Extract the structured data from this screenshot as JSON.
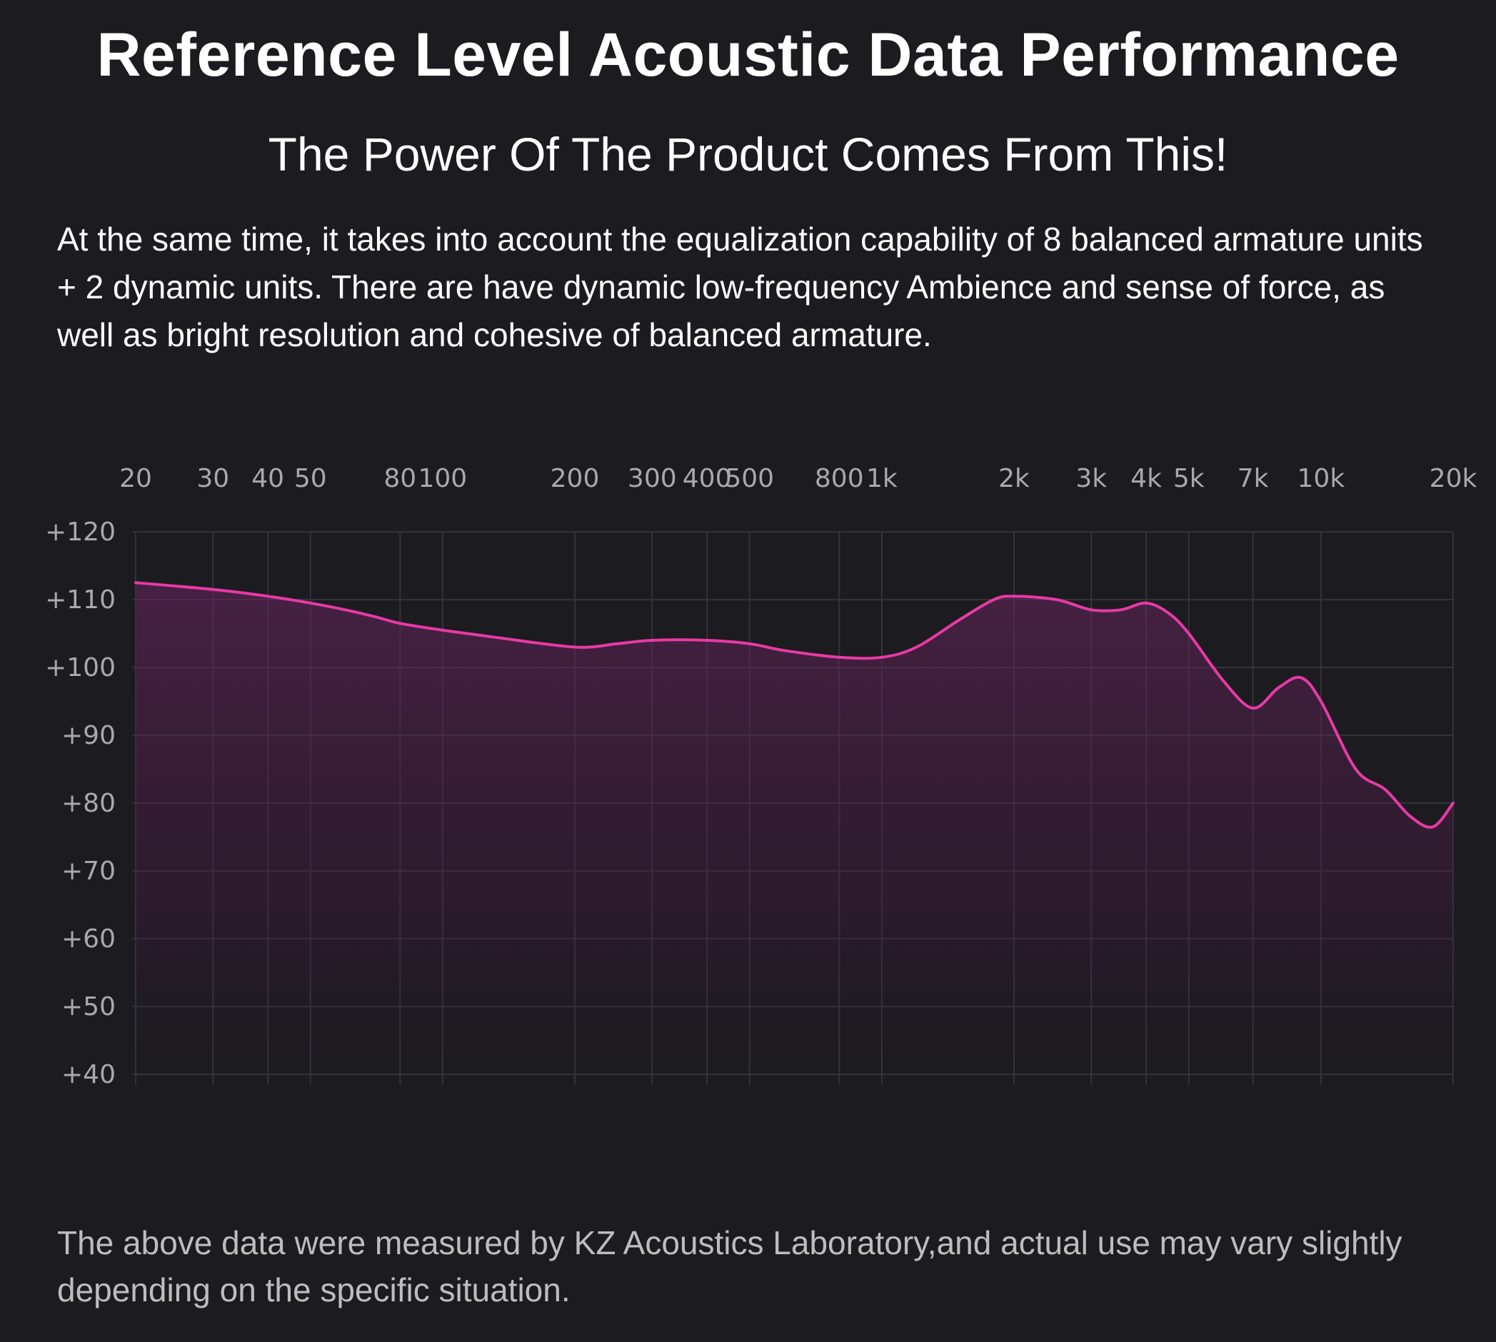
{
  "header": {
    "title": "Reference Level Acoustic Data Performance",
    "subtitle": "The Power Of The Product Comes From This!"
  },
  "intro": {
    "text": "At the same time, it takes into account the equalization capability of 8 balanced armature units + 2 dynamic units. There are have dynamic low-frequency Ambience and sense of force, as well as bright resolution and cohesive of balanced armature."
  },
  "footnote": {
    "text": "The above data were measured by KZ Acoustics Laboratory,and actual use may vary slightly depending on the specific situation."
  },
  "chart_data": {
    "type": "line",
    "title": "",
    "xlabel": "",
    "ylabel": "",
    "x_scale": "log",
    "xlim": [
      20,
      20000
    ],
    "ylim": [
      40,
      120
    ],
    "grid": true,
    "line_color": "#e83aa5",
    "fill_color": "#6a2560",
    "x_ticks": [
      {
        "value": 20,
        "label": "20"
      },
      {
        "value": 30,
        "label": "30"
      },
      {
        "value": 40,
        "label": "40"
      },
      {
        "value": 50,
        "label": "50"
      },
      {
        "value": 80,
        "label": "80"
      },
      {
        "value": 100,
        "label": "100"
      },
      {
        "value": 200,
        "label": "200"
      },
      {
        "value": 300,
        "label": "300"
      },
      {
        "value": 400,
        "label": "400"
      },
      {
        "value": 500,
        "label": "500"
      },
      {
        "value": 800,
        "label": "800"
      },
      {
        "value": 1000,
        "label": "1k"
      },
      {
        "value": 2000,
        "label": "2k"
      },
      {
        "value": 3000,
        "label": "3k"
      },
      {
        "value": 4000,
        "label": "4k"
      },
      {
        "value": 5000,
        "label": "5k"
      },
      {
        "value": 7000,
        "label": "7k"
      },
      {
        "value": 10000,
        "label": "10k"
      },
      {
        "value": 20000,
        "label": "20k"
      }
    ],
    "y_ticks": [
      {
        "value": 120,
        "label": "+120"
      },
      {
        "value": 110,
        "label": "+110"
      },
      {
        "value": 100,
        "label": "+100"
      },
      {
        "value": 90,
        "label": "+90"
      },
      {
        "value": 80,
        "label": "+80"
      },
      {
        "value": 70,
        "label": "+70"
      },
      {
        "value": 60,
        "label": "+60"
      },
      {
        "value": 50,
        "label": "+50"
      },
      {
        "value": 40,
        "label": "+40"
      }
    ],
    "series": [
      {
        "x": [
          20,
          30,
          40,
          50,
          60,
          70,
          80,
          100,
          130,
          200,
          250,
          300,
          400,
          500,
          600,
          800,
          1000,
          1200,
          1500,
          1800,
          2000,
          2500,
          3000,
          3500,
          4000,
          4500,
          5000,
          6000,
          7000,
          8000,
          9000,
          10000,
          12000,
          14000,
          16000,
          18000,
          20000
        ],
        "y": [
          112.5,
          111.5,
          110.5,
          109.5,
          108.5,
          107.5,
          106.5,
          105.5,
          104.5,
          103,
          103.5,
          104,
          104,
          103.5,
          102.5,
          101.5,
          101.5,
          103,
          107,
          110,
          110.5,
          110,
          108.5,
          108.5,
          109.5,
          108,
          105,
          98,
          94,
          97,
          98.5,
          95,
          85,
          82,
          78,
          76.5,
          80
        ]
      }
    ]
  }
}
